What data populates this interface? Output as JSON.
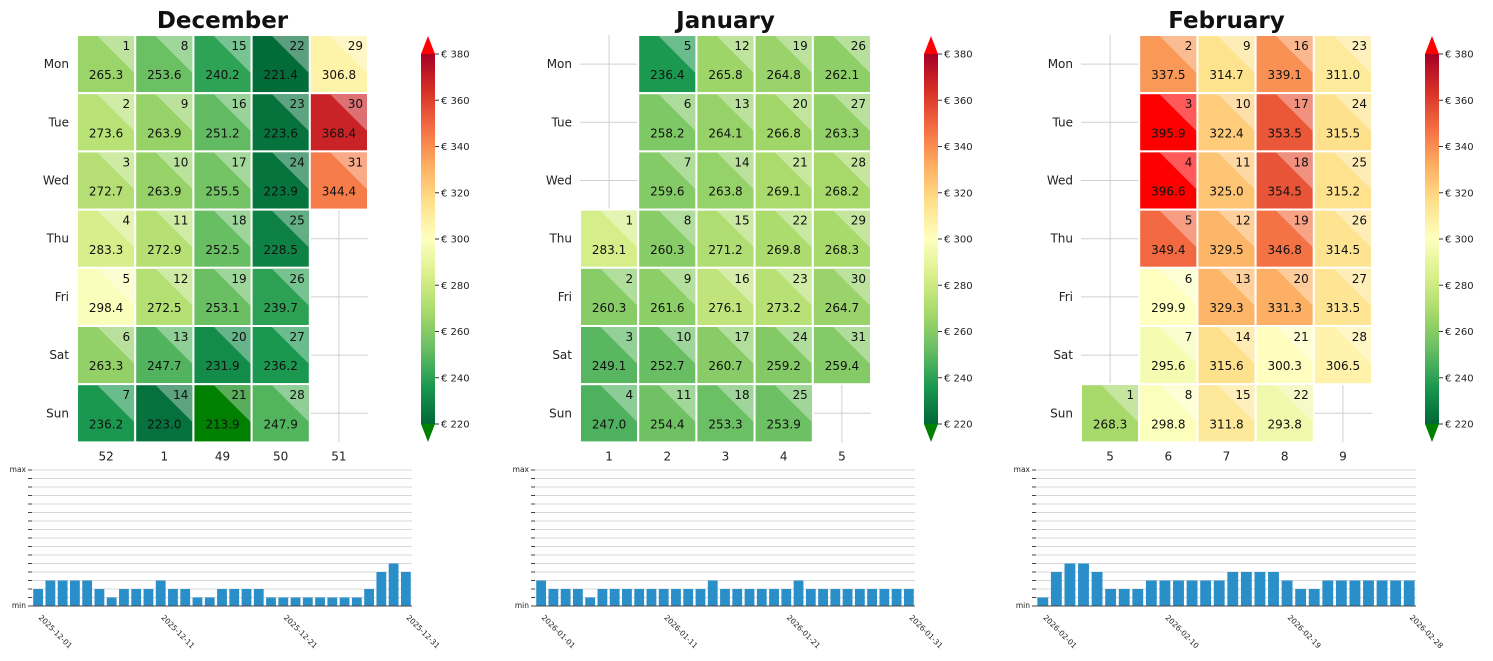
{
  "chart_data": [
    {
      "type": "heatmap",
      "title": "December",
      "row_labels": [
        "Mon",
        "Tue",
        "Wed",
        "Thu",
        "Fri",
        "Sat",
        "Sun"
      ],
      "column_labels": [
        "52",
        "1",
        "49",
        "50",
        "51"
      ],
      "cells": [
        {
          "day": "1",
          "value": 265.3,
          "col": 0,
          "row": 0
        },
        {
          "day": "2",
          "value": 273.6,
          "col": 0,
          "row": 1
        },
        {
          "day": "3",
          "value": 272.7,
          "col": 0,
          "row": 2
        },
        {
          "day": "4",
          "value": 283.3,
          "col": 0,
          "row": 3
        },
        {
          "day": "5",
          "value": 298.4,
          "col": 0,
          "row": 4
        },
        {
          "day": "6",
          "value": 263.3,
          "col": 0,
          "row": 5
        },
        {
          "day": "7",
          "value": 236.2,
          "col": 0,
          "row": 6
        },
        {
          "day": "8",
          "value": 253.6,
          "col": 1,
          "row": 0
        },
        {
          "day": "9",
          "value": 263.9,
          "col": 1,
          "row": 1
        },
        {
          "day": "10",
          "value": 263.9,
          "col": 1,
          "row": 2
        },
        {
          "day": "11",
          "value": 272.9,
          "col": 1,
          "row": 3
        },
        {
          "day": "12",
          "value": 272.5,
          "col": 1,
          "row": 4
        },
        {
          "day": "13",
          "value": 247.7,
          "col": 1,
          "row": 5
        },
        {
          "day": "14",
          "value": 223.0,
          "col": 1,
          "row": 6
        },
        {
          "day": "15",
          "value": 240.2,
          "col": 2,
          "row": 0
        },
        {
          "day": "16",
          "value": 251.2,
          "col": 2,
          "row": 1
        },
        {
          "day": "17",
          "value": 255.5,
          "col": 2,
          "row": 2
        },
        {
          "day": "18",
          "value": 252.5,
          "col": 2,
          "row": 3
        },
        {
          "day": "19",
          "value": 253.1,
          "col": 2,
          "row": 4
        },
        {
          "day": "20",
          "value": 231.9,
          "col": 2,
          "row": 5
        },
        {
          "day": "21",
          "value": 213.9,
          "col": 2,
          "row": 6
        },
        {
          "day": "22",
          "value": 221.4,
          "col": 3,
          "row": 0
        },
        {
          "day": "23",
          "value": 223.6,
          "col": 3,
          "row": 1
        },
        {
          "day": "24",
          "value": 223.9,
          "col": 3,
          "row": 2
        },
        {
          "day": "25",
          "value": 228.5,
          "col": 3,
          "row": 3
        },
        {
          "day": "26",
          "value": 239.7,
          "col": 3,
          "row": 4
        },
        {
          "day": "27",
          "value": 236.2,
          "col": 3,
          "row": 5
        },
        {
          "day": "28",
          "value": 247.9,
          "col": 3,
          "row": 6
        },
        {
          "day": "29",
          "value": 306.8,
          "col": 4,
          "row": 0
        },
        {
          "day": "30",
          "value": 368.4,
          "col": 4,
          "row": 1
        },
        {
          "day": "31",
          "value": 344.4,
          "col": 4,
          "row": 2
        }
      ],
      "colorbar": {
        "ticks": [
          "€ 380",
          "€ 360",
          "€ 340",
          "€ 320",
          "€ 300",
          "€ 280",
          "€ 260",
          "€ 240",
          "€ 220"
        ],
        "range": [
          220,
          380
        ]
      },
      "bars": {
        "ylabels": [
          "max",
          "min"
        ],
        "xticks": [
          "2025-12-01",
          "2025-12-11",
          "2025-12-21",
          "2025-12-31"
        ],
        "values": [
          2,
          3,
          3,
          3,
          3,
          2,
          1,
          2,
          2,
          2,
          3,
          2,
          2,
          1,
          1,
          2,
          2,
          2,
          2,
          1,
          1,
          1,
          1,
          1,
          1,
          1,
          1,
          2,
          4,
          5,
          4
        ],
        "max_level": 16
      }
    },
    {
      "type": "heatmap",
      "title": "January",
      "row_labels": [
        "Mon",
        "Tue",
        "Wed",
        "Thu",
        "Fri",
        "Sat",
        "Sun"
      ],
      "column_labels": [
        "1",
        "2",
        "3",
        "4",
        "5"
      ],
      "cells": [
        {
          "day": "1",
          "value": 283.1,
          "col": 0,
          "row": 3
        },
        {
          "day": "2",
          "value": 260.3,
          "col": 0,
          "row": 4
        },
        {
          "day": "3",
          "value": 249.1,
          "col": 0,
          "row": 5
        },
        {
          "day": "4",
          "value": 247.0,
          "col": 0,
          "row": 6
        },
        {
          "day": "5",
          "value": 236.4,
          "col": 1,
          "row": 0
        },
        {
          "day": "6",
          "value": 258.2,
          "col": 1,
          "row": 1
        },
        {
          "day": "7",
          "value": 259.6,
          "col": 1,
          "row": 2
        },
        {
          "day": "8",
          "value": 260.3,
          "col": 1,
          "row": 3
        },
        {
          "day": "9",
          "value": 261.6,
          "col": 1,
          "row": 4
        },
        {
          "day": "10",
          "value": 252.7,
          "col": 1,
          "row": 5
        },
        {
          "day": "11",
          "value": 254.4,
          "col": 1,
          "row": 6
        },
        {
          "day": "12",
          "value": 265.8,
          "col": 2,
          "row": 0
        },
        {
          "day": "13",
          "value": 264.1,
          "col": 2,
          "row": 1
        },
        {
          "day": "14",
          "value": 263.8,
          "col": 2,
          "row": 2
        },
        {
          "day": "15",
          "value": 271.2,
          "col": 2,
          "row": 3
        },
        {
          "day": "16",
          "value": 276.1,
          "col": 2,
          "row": 4
        },
        {
          "day": "17",
          "value": 260.7,
          "col": 2,
          "row": 5
        },
        {
          "day": "18",
          "value": 253.3,
          "col": 2,
          "row": 6
        },
        {
          "day": "19",
          "value": 264.8,
          "col": 3,
          "row": 0
        },
        {
          "day": "20",
          "value": 266.8,
          "col": 3,
          "row": 1
        },
        {
          "day": "21",
          "value": 269.1,
          "col": 3,
          "row": 2
        },
        {
          "day": "22",
          "value": 269.8,
          "col": 3,
          "row": 3
        },
        {
          "day": "23",
          "value": 273.2,
          "col": 3,
          "row": 4
        },
        {
          "day": "24",
          "value": 259.2,
          "col": 3,
          "row": 5
        },
        {
          "day": "25",
          "value": 253.9,
          "col": 3,
          "row": 6
        },
        {
          "day": "26",
          "value": 262.1,
          "col": 4,
          "row": 0
        },
        {
          "day": "27",
          "value": 263.3,
          "col": 4,
          "row": 1
        },
        {
          "day": "28",
          "value": 268.2,
          "col": 4,
          "row": 2
        },
        {
          "day": "29",
          "value": 268.3,
          "col": 4,
          "row": 3
        },
        {
          "day": "30",
          "value": 264.7,
          "col": 4,
          "row": 4
        },
        {
          "day": "31",
          "value": 259.4,
          "col": 4,
          "row": 5
        }
      ],
      "colorbar": {
        "ticks": [
          "€ 380",
          "€ 360",
          "€ 340",
          "€ 320",
          "€ 300",
          "€ 280",
          "€ 260",
          "€ 240",
          "€ 220"
        ],
        "range": [
          220,
          380
        ]
      },
      "bars": {
        "ylabels": [
          "max",
          "min"
        ],
        "xticks": [
          "2026-01-01",
          "2026-01-11",
          "2026-01-21",
          "2026-01-31"
        ],
        "values": [
          3,
          2,
          2,
          2,
          1,
          2,
          2,
          2,
          2,
          2,
          2,
          2,
          2,
          2,
          3,
          2,
          2,
          2,
          2,
          2,
          2,
          3,
          2,
          2,
          2,
          2,
          2,
          2,
          2,
          2,
          2
        ],
        "max_level": 16
      }
    },
    {
      "type": "heatmap",
      "title": "February",
      "row_labels": [
        "Mon",
        "Tue",
        "Wed",
        "Thu",
        "Fri",
        "Sat",
        "Sun"
      ],
      "column_labels": [
        "5",
        "6",
        "7",
        "8",
        "9"
      ],
      "cells": [
        {
          "day": "1",
          "value": 268.3,
          "col": 0,
          "row": 6
        },
        {
          "day": "2",
          "value": 337.5,
          "col": 1,
          "row": 0
        },
        {
          "day": "3",
          "value": 395.9,
          "col": 1,
          "row": 1
        },
        {
          "day": "4",
          "value": 396.6,
          "col": 1,
          "row": 2
        },
        {
          "day": "5",
          "value": 349.4,
          "col": 1,
          "row": 3
        },
        {
          "day": "6",
          "value": 299.9,
          "col": 1,
          "row": 4
        },
        {
          "day": "7",
          "value": 295.6,
          "col": 1,
          "row": 5
        },
        {
          "day": "8",
          "value": 298.8,
          "col": 1,
          "row": 6
        },
        {
          "day": "9",
          "value": 314.7,
          "col": 2,
          "row": 0
        },
        {
          "day": "10",
          "value": 322.4,
          "col": 2,
          "row": 1
        },
        {
          "day": "11",
          "value": 325.0,
          "col": 2,
          "row": 2
        },
        {
          "day": "12",
          "value": 329.5,
          "col": 2,
          "row": 3
        },
        {
          "day": "13",
          "value": 329.3,
          "col": 2,
          "row": 4
        },
        {
          "day": "14",
          "value": 315.6,
          "col": 2,
          "row": 5
        },
        {
          "day": "15",
          "value": 311.8,
          "col": 2,
          "row": 6
        },
        {
          "day": "16",
          "value": 339.1,
          "col": 3,
          "row": 0
        },
        {
          "day": "17",
          "value": 353.5,
          "col": 3,
          "row": 1
        },
        {
          "day": "18",
          "value": 354.5,
          "col": 3,
          "row": 2
        },
        {
          "day": "19",
          "value": 346.8,
          "col": 3,
          "row": 3
        },
        {
          "day": "20",
          "value": 331.3,
          "col": 3,
          "row": 4
        },
        {
          "day": "21",
          "value": 300.3,
          "col": 3,
          "row": 5
        },
        {
          "day": "22",
          "value": 293.8,
          "col": 3,
          "row": 6
        },
        {
          "day": "23",
          "value": 311.0,
          "col": 4,
          "row": 0
        },
        {
          "day": "24",
          "value": 315.5,
          "col": 4,
          "row": 1
        },
        {
          "day": "25",
          "value": 315.2,
          "col": 4,
          "row": 2
        },
        {
          "day": "26",
          "value": 314.5,
          "col": 4,
          "row": 3
        },
        {
          "day": "27",
          "value": 313.5,
          "col": 4,
          "row": 4
        },
        {
          "day": "28",
          "value": 306.5,
          "col": 4,
          "row": 5
        }
      ],
      "colorbar": {
        "ticks": [
          "€ 380",
          "€ 360",
          "€ 340",
          "€ 320",
          "€ 300",
          "€ 280",
          "€ 260",
          "€ 240",
          "€ 220"
        ],
        "range": [
          220,
          380
        ]
      },
      "bars": {
        "ylabels": [
          "max",
          "min"
        ],
        "xticks": [
          "2026-02-01",
          "2026-02-10",
          "2026-02-19",
          "2026-02-28"
        ],
        "values": [
          1,
          4,
          5,
          5,
          4,
          2,
          2,
          2,
          3,
          3,
          3,
          3,
          3,
          3,
          4,
          4,
          4,
          4,
          3,
          2,
          2,
          3,
          3,
          3,
          3,
          3,
          3,
          3
        ],
        "max_level": 16
      }
    }
  ],
  "colors": {
    "bar": "#2a8fc8",
    "scale": [
      "#006837",
      "#1a9850",
      "#66bd63",
      "#a6d96a",
      "#d9ef8b",
      "#ffffbf",
      "#fee08b",
      "#fdae61",
      "#f46d43",
      "#d73027",
      "#a50026"
    ],
    "over": "#ff0000",
    "under": "#008000"
  }
}
